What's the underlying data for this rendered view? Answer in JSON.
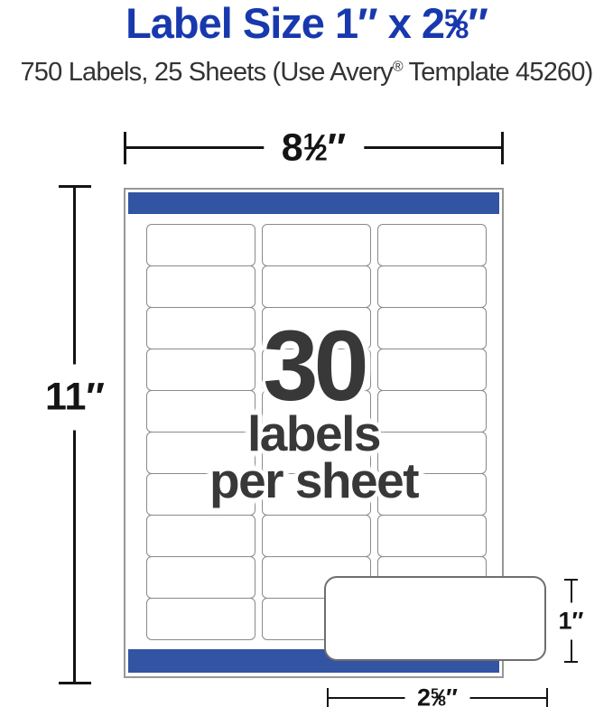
{
  "header": {
    "title": {
      "prefix": "Label Size 1″ x 2",
      "fraction": {
        "numerator": "5",
        "slash": "⁄",
        "denominator": "8"
      },
      "suffix": "″"
    },
    "subtitle": {
      "before_reg": "750 Labels, 25 Sheets (Use Avery",
      "registered_mark": "®",
      "after_reg": " Template 45260)"
    }
  },
  "diagram": {
    "sheet_width_dim": {
      "whole": "8",
      "numerator": "1",
      "slash": "⁄",
      "denominator": "2",
      "unit": "″"
    },
    "sheet_height_dim": "11″",
    "label_height_dim": "1″",
    "label_width_dim": {
      "whole": "2",
      "numerator": "5",
      "slash": "⁄",
      "denominator": "8",
      "unit": "″"
    },
    "labels_per_sheet": {
      "count": "30",
      "line1": "labels",
      "line2": "per sheet"
    },
    "grid": {
      "rows": 10,
      "columns": 3
    }
  },
  "colors": {
    "title_blue": "#1839ad",
    "band_blue": "#3254a2",
    "dark_text": "#383838",
    "grid_line": "#8a8a8a",
    "dimension_line": "#141414"
  }
}
